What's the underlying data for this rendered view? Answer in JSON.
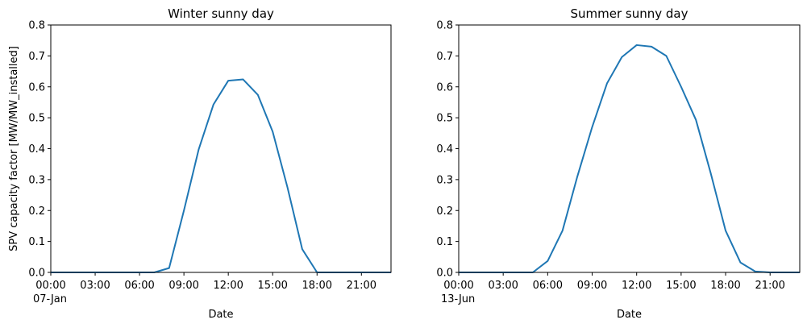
{
  "chart_data": [
    {
      "type": "line",
      "title": "Winter sunny day",
      "xlabel": "Date",
      "ylabel": "SPV capacity factor [MW/MW_installed]",
      "date_label": "07-Jan",
      "xticks": [
        "00:00",
        "03:00",
        "06:00",
        "09:00",
        "12:00",
        "15:00",
        "18:00",
        "21:00"
      ],
      "yticks": [
        "0.0",
        "0.1",
        "0.2",
        "0.3",
        "0.4",
        "0.5",
        "0.6",
        "0.7",
        "0.8"
      ],
      "xlim": [
        "00:00",
        "23:00"
      ],
      "ylim": [
        0,
        0.8
      ],
      "color": "#1f77b4",
      "x": [
        "00:00",
        "01:00",
        "02:00",
        "03:00",
        "04:00",
        "05:00",
        "06:00",
        "07:00",
        "08:00",
        "09:00",
        "10:00",
        "11:00",
        "12:00",
        "13:00",
        "14:00",
        "15:00",
        "16:00",
        "17:00",
        "18:00",
        "19:00",
        "20:00",
        "21:00",
        "22:00",
        "23:00"
      ],
      "y": [
        0,
        0,
        0,
        0,
        0,
        0,
        0,
        0,
        0.014,
        0.2,
        0.398,
        0.543,
        0.62,
        0.624,
        0.574,
        0.455,
        0.275,
        0.075,
        0,
        0,
        0,
        0,
        0,
        0
      ]
    },
    {
      "type": "line",
      "title": "Summer sunny day",
      "xlabel": "Date",
      "ylabel": "",
      "date_label": "13-Jun",
      "xticks": [
        "00:00",
        "03:00",
        "06:00",
        "09:00",
        "12:00",
        "15:00",
        "18:00",
        "21:00"
      ],
      "yticks": [
        "0.0",
        "0.1",
        "0.2",
        "0.3",
        "0.4",
        "0.5",
        "0.6",
        "0.7",
        "0.8"
      ],
      "xlim": [
        "00:00",
        "23:00"
      ],
      "ylim": [
        0,
        0.8
      ],
      "color": "#1f77b4",
      "x": [
        "00:00",
        "01:00",
        "02:00",
        "03:00",
        "04:00",
        "05:00",
        "06:00",
        "07:00",
        "08:00",
        "09:00",
        "10:00",
        "11:00",
        "12:00",
        "13:00",
        "14:00",
        "15:00",
        "16:00",
        "17:00",
        "18:00",
        "19:00",
        "20:00",
        "21:00",
        "22:00",
        "23:00"
      ],
      "y": [
        0,
        0,
        0,
        0,
        0,
        0,
        0.037,
        0.135,
        0.31,
        0.47,
        0.611,
        0.696,
        0.735,
        0.73,
        0.7,
        0.6,
        0.493,
        0.32,
        0.135,
        0.032,
        0.003,
        0,
        0,
        0
      ]
    }
  ]
}
